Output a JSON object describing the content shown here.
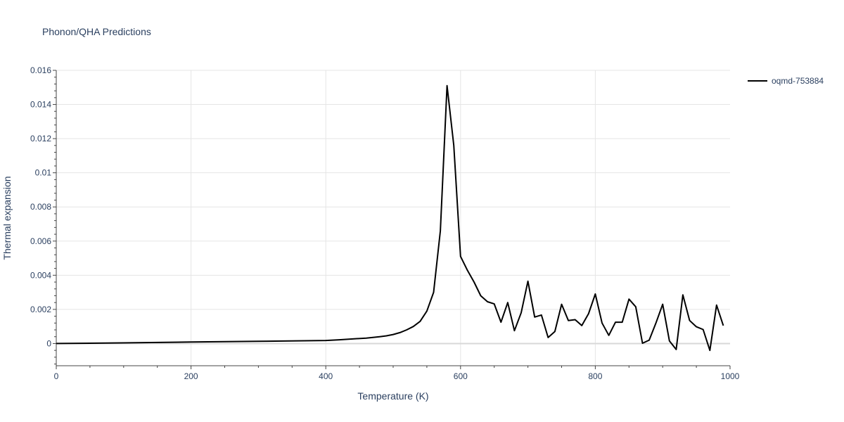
{
  "chart_data": {
    "type": "line",
    "title": "Phonon/QHA Predictions",
    "xlabel": "Temperature (K)",
    "ylabel": "Thermal expansion",
    "xlim": [
      0,
      1000
    ],
    "ylim": [
      -0.0013,
      0.016
    ],
    "x_ticks": [
      0,
      200,
      400,
      600,
      800,
      1000
    ],
    "x_tick_labels": [
      "0",
      "200",
      "400",
      "600",
      "800",
      "1000"
    ],
    "y_ticks": [
      0,
      0.002,
      0.004,
      0.006,
      0.008,
      0.01,
      0.012,
      0.014,
      0.016
    ],
    "y_tick_labels": [
      "0",
      "0.002",
      "0.004",
      "0.006",
      "0.008",
      "0.01",
      "0.012",
      "0.014",
      "0.016"
    ],
    "grid": true,
    "legend": "right",
    "colors": {
      "line": "#000000",
      "grid": "#e5e5e5",
      "zeroline": "#d8d8d8",
      "text": "#2a3f5f"
    },
    "series": [
      {
        "name": "oqmd-753884",
        "x": [
          0,
          100,
          200,
          300,
          400,
          420,
          440,
          460,
          480,
          490,
          500,
          510,
          520,
          530,
          540,
          550,
          560,
          570,
          580,
          590,
          600,
          610,
          620,
          630,
          640,
          650,
          660,
          670,
          680,
          690,
          700,
          710,
          720,
          730,
          740,
          750,
          760,
          770,
          780,
          790,
          800,
          810,
          820,
          830,
          840,
          850,
          860,
          870,
          880,
          890,
          900,
          910,
          920,
          930,
          940,
          950,
          960,
          970,
          980,
          990
        ],
        "y": [
          0,
          4e-05,
          9e-05,
          0.00013,
          0.00018,
          0.00022,
          0.00027,
          0.00032,
          0.0004,
          0.00045,
          0.00053,
          0.00064,
          0.0008,
          0.001,
          0.0013,
          0.0019,
          0.003,
          0.0066,
          0.0151,
          0.0116,
          0.0051,
          0.0043,
          0.0036,
          0.0028,
          0.00245,
          0.00232,
          0.00125,
          0.0024,
          0.00075,
          0.0018,
          0.00365,
          0.00155,
          0.00167,
          0.00035,
          0.0007,
          0.0023,
          0.00135,
          0.0014,
          0.00105,
          0.00175,
          0.0029,
          0.0012,
          0.00048,
          0.00125,
          0.00125,
          0.0026,
          0.00215,
          2e-05,
          0.0002,
          0.0012,
          0.0023,
          0.00015,
          -0.00035,
          0.00285,
          0.00135,
          0.00098,
          0.00082,
          -0.0004,
          0.00225,
          0.00105
        ]
      }
    ]
  }
}
